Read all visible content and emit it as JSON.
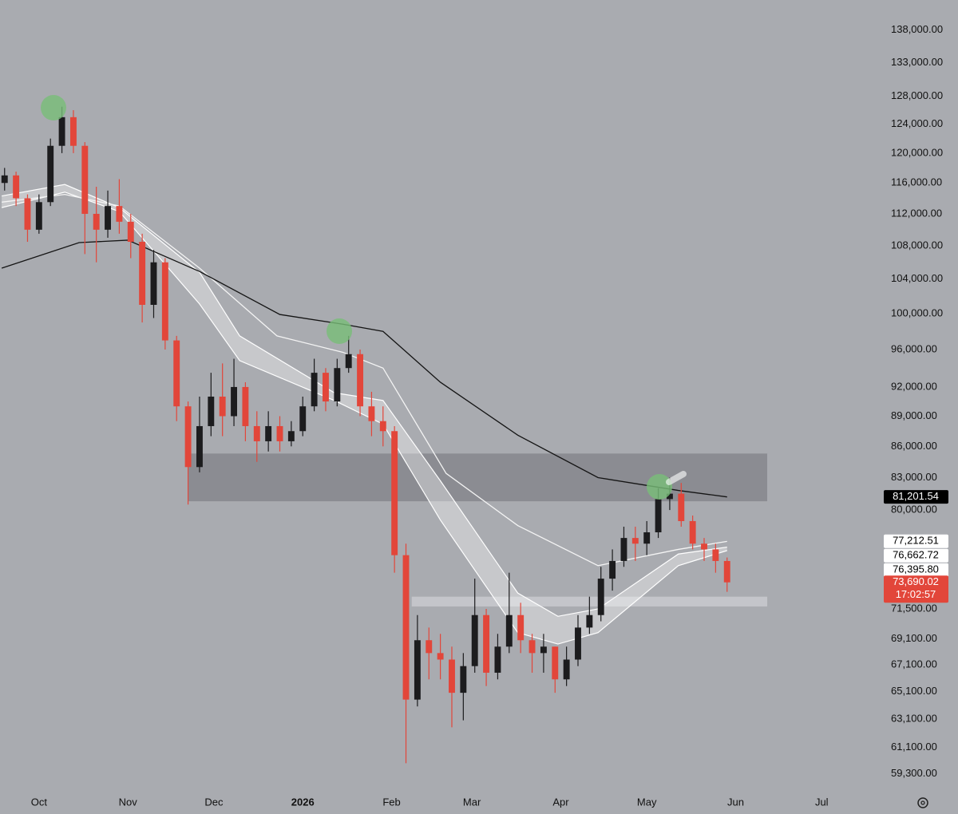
{
  "chart_data": {
    "type": "candlestick",
    "log_scale": true,
    "background": "#a9abb0",
    "xlim": [
      -13.6,
      292.7
    ],
    "ylim": [
      58200,
      142800
    ],
    "yticks": [
      {
        "value": 138000,
        "label": "138,000.00"
      },
      {
        "value": 133000,
        "label": "133,000.00"
      },
      {
        "value": 128000,
        "label": "128,000.00"
      },
      {
        "value": 124000,
        "label": "124,000.00"
      },
      {
        "value": 120000,
        "label": "120,000.00"
      },
      {
        "value": 116000,
        "label": "116,000.00"
      },
      {
        "value": 112000,
        "label": "112,000.00"
      },
      {
        "value": 108000,
        "label": "108,000.00"
      },
      {
        "value": 104000,
        "label": "104,000.00"
      },
      {
        "value": 100000,
        "label": "100,000.00"
      },
      {
        "value": 96000,
        "label": "96,000.00"
      },
      {
        "value": 92000,
        "label": "92,000.00"
      },
      {
        "value": 89000,
        "label": "89,000.00"
      },
      {
        "value": 86000,
        "label": "86,000.00"
      },
      {
        "value": 83000,
        "label": "83,000.00"
      },
      {
        "value": 80000,
        "label": "80,000.00"
      },
      {
        "value": 71500,
        "label": "71,500.00"
      },
      {
        "value": 69100,
        "label": "69,100.00"
      },
      {
        "value": 67100,
        "label": "67,100.00"
      },
      {
        "value": 65100,
        "label": "65,100.00"
      },
      {
        "value": 63100,
        "label": "63,100.00"
      },
      {
        "value": 61100,
        "label": "61,100.00"
      },
      {
        "value": 59300,
        "label": "59,300.00"
      }
    ],
    "xticks": [
      {
        "value": 0,
        "label": "Oct"
      },
      {
        "value": 31,
        "label": "Nov"
      },
      {
        "value": 61,
        "label": "Dec"
      },
      {
        "value": 92,
        "label": "2026"
      },
      {
        "value": 123,
        "label": "Feb"
      },
      {
        "value": 151,
        "label": "Mar"
      },
      {
        "value": 182,
        "label": "Apr"
      },
      {
        "value": 212,
        "label": "May"
      },
      {
        "value": 243,
        "label": "Jun"
      },
      {
        "value": 273,
        "label": "Jul"
      }
    ],
    "up_color": "#1c1c1e",
    "down_color": "#e2463a",
    "x": [
      -12,
      -8,
      -4,
      0,
      4,
      8,
      12,
      16,
      20,
      24,
      28,
      32,
      36,
      40,
      44,
      48,
      52,
      56,
      60,
      64,
      68,
      72,
      76,
      80,
      84,
      88,
      92,
      96,
      100,
      104,
      108,
      112,
      116,
      120,
      124,
      128,
      132,
      136,
      140,
      144,
      148,
      152,
      156,
      160,
      164,
      168,
      172,
      176,
      180,
      184,
      188,
      192,
      196,
      200,
      204,
      208,
      212,
      216,
      220,
      224,
      228,
      232,
      236,
      240
    ],
    "open": [
      116000,
      117000,
      114000,
      110000,
      113500,
      121000,
      125000,
      121000,
      112000,
      110000,
      113000,
      111000,
      108500,
      101000,
      106000,
      97000,
      90000,
      84000,
      88000,
      91000,
      89000,
      92000,
      88000,
      86500,
      88000,
      86500,
      87500,
      90000,
      93500,
      90500,
      94000,
      95500,
      90000,
      88500,
      87500,
      76000,
      64500,
      69000,
      68000,
      67500,
      65000,
      67000,
      71000,
      66500,
      68500,
      71000,
      69000,
      68000,
      68500,
      66000,
      67500,
      70000,
      71000,
      74000,
      75500,
      77500,
      77000,
      78000,
      81000,
      81500,
      79000,
      77000,
      76500,
      75500
    ],
    "high": [
      118000,
      117500,
      114500,
      114500,
      122000,
      126500,
      126000,
      121500,
      115500,
      115000,
      116500,
      112000,
      109500,
      107500,
      106500,
      97500,
      90500,
      91000,
      93500,
      94500,
      95000,
      92500,
      89500,
      89500,
      89000,
      88500,
      91000,
      95000,
      94000,
      95000,
      97500,
      96000,
      91500,
      90000,
      88000,
      77000,
      71000,
      70000,
      69500,
      68500,
      68000,
      74000,
      71500,
      69500,
      74500,
      72000,
      69500,
      69500,
      68500,
      68500,
      71000,
      72500,
      75000,
      76500,
      78500,
      78500,
      79000,
      82000,
      83000,
      82500,
      79500,
      77500,
      77000,
      75800
    ],
    "low": [
      115000,
      113000,
      108500,
      109500,
      113000,
      120000,
      120000,
      107000,
      106000,
      109000,
      109500,
      106500,
      99000,
      99500,
      96000,
      88500,
      80500,
      83500,
      87000,
      87000,
      88000,
      86500,
      84500,
      85500,
      85500,
      86000,
      87000,
      89500,
      89500,
      90000,
      93500,
      89000,
      87000,
      86000,
      74500,
      60000,
      64000,
      66000,
      66000,
      62500,
      63000,
      66500,
      65500,
      66000,
      68000,
      68000,
      66500,
      66500,
      65000,
      65500,
      67000,
      69500,
      70500,
      73000,
      75000,
      75500,
      76000,
      77500,
      80000,
      78500,
      76500,
      75500,
      74500,
      72900
    ],
    "close": [
      117000,
      114000,
      110000,
      113500,
      121000,
      125000,
      121000,
      112000,
      110000,
      113000,
      111000,
      108500,
      101000,
      106000,
      97000,
      90000,
      84000,
      88000,
      91000,
      89000,
      92000,
      88000,
      86500,
      88000,
      86500,
      87500,
      90000,
      93500,
      90500,
      94000,
      95500,
      90000,
      88500,
      87500,
      76000,
      64500,
      69000,
      68000,
      67500,
      65000,
      67000,
      71000,
      66500,
      68500,
      71000,
      69000,
      68000,
      68500,
      66000,
      67500,
      70000,
      71000,
      74000,
      75500,
      77500,
      77000,
      78000,
      81000,
      81500,
      79000,
      77000,
      76500,
      75500,
      73690.02
    ],
    "zones": [
      {
        "x": [
          52,
          254
        ],
        "y": [
          80800,
          85300
        ],
        "color": "#8b8c92"
      },
      {
        "x": [
          130,
          254
        ],
        "y": [
          71700,
          72500
        ],
        "color": "#c4c5ca"
      }
    ],
    "band": {
      "color": "#ffffff",
      "x": [
        -13,
        9,
        28,
        56,
        70,
        103,
        120,
        140,
        167,
        181,
        195,
        223,
        240
      ],
      "upper": [
        114300,
        115800,
        112800,
        104800,
        97500,
        91400,
        90600,
        82700,
        72800,
        70900,
        71500,
        76100,
        76700
      ],
      "lower": [
        112800,
        114800,
        112300,
        101100,
        94800,
        90600,
        88200,
        79100,
        69600,
        68700,
        69600,
        75100,
        76400
      ]
    },
    "lines": [
      {
        "color": "#f4f4f4",
        "x": [
          -13,
          9,
          28,
          56,
          83,
          106,
          120,
          142,
          167,
          195,
          223,
          240
        ],
        "values": [
          113500,
          114500,
          113000,
          105300,
          97500,
          95700,
          94000,
          83400,
          78600,
          75100,
          76500,
          77200
        ]
      },
      {
        "color": "#141414",
        "x": [
          -13,
          14,
          31,
          56,
          84,
          106,
          120,
          140,
          167,
          195,
          223,
          240
        ],
        "values": [
          105300,
          108400,
          108700,
          104900,
          99900,
          98800,
          98000,
          92500,
          87100,
          83000,
          81800,
          81200
        ]
      }
    ],
    "price_labels": [
      {
        "value": 81201.54,
        "label": "81,201.54",
        "color": "#000000",
        "text_color": "#ffffff"
      },
      {
        "value": 77212.51,
        "label": "77,212.51",
        "color": "#ffffff",
        "text_color": "#000000"
      },
      {
        "value": 76662.72,
        "label": "76,662.72",
        "color": "#ffffff",
        "text_color": "#000000"
      },
      {
        "value": 76395.8,
        "label": "76,395.80",
        "color": "#ffffff",
        "text_color": "#000000"
      },
      {
        "value": 73690.02,
        "label": "73,690.02",
        "color": "#e2463a",
        "text_color": "#ffffff"
      }
    ],
    "countdown": "17:02:57"
  }
}
